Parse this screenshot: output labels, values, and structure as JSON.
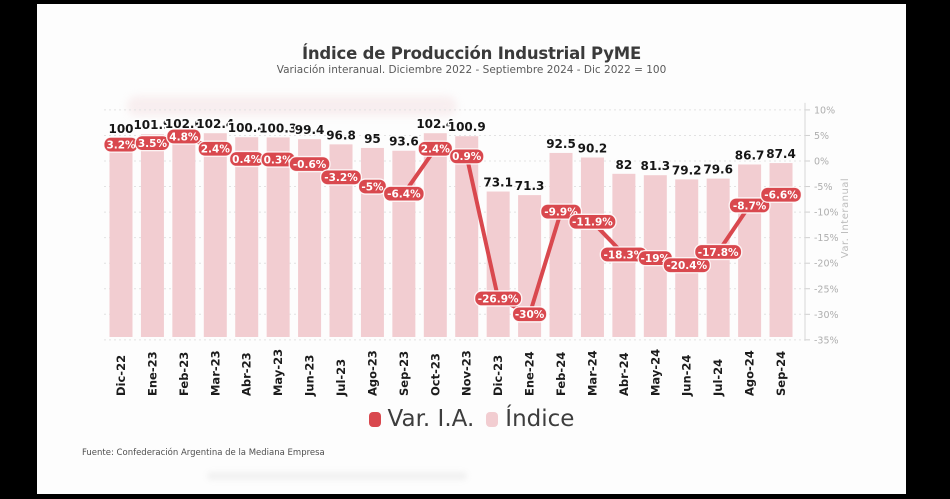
{
  "frame": {
    "background": "#000000",
    "photo_background": "#fdfdfd"
  },
  "chart_data": {
    "type": "bar",
    "subtype": "bar+line-combo",
    "title": "Índice de Producción Industrial PyME",
    "subtitle": "Variación interanual. Diciembre 2022 - Septiembre 2024 - Dic 2022 = 100",
    "categories": [
      "Dic-22",
      "Ene-23",
      "Feb-23",
      "Mar-23",
      "Abr-23",
      "May-23",
      "Jun-23",
      "Jul-23",
      "Ago-23",
      "Sep-23",
      "Oct-23",
      "Nov-23",
      "Dic-23",
      "Ene-24",
      "Feb-24",
      "Mar-24",
      "Abr-24",
      "May-24",
      "Jun-24",
      "Jul-24",
      "Ago-24",
      "Sep-24"
    ],
    "series": [
      {
        "name": "Var. I.A.",
        "type": "line",
        "unit": "%",
        "color": "#d9484e",
        "values": [
          3.2,
          3.5,
          4.8,
          2.4,
          0.4,
          0.3,
          -0.6,
          -3.2,
          -5,
          -6.4,
          2.4,
          0.9,
          -26.9,
          -30,
          -9.9,
          -11.9,
          -18.3,
          -19,
          -20.4,
          -17.8,
          -8.7,
          -6.6
        ],
        "labels": [
          "3.2%",
          "3.5%",
          "4.8%",
          "2.4%",
          "0.4%",
          "0.3%",
          "-0.6%",
          "-3.2%",
          "-5%",
          "-6.4%",
          "2.4%",
          "0.9%",
          "-26.9%",
          "-30%",
          "-9.9%",
          "-11.9%",
          "-18.3%",
          "-19%",
          "-20.4%",
          "-17.8%",
          "-8.7%",
          "-6.6%"
        ],
        "label_style": {
          "pill_background": "#d9484e",
          "pill_text": "#ffffff"
        }
      },
      {
        "name": "Índice",
        "type": "bar",
        "color": "#f2cdd1",
        "values": [
          100,
          101.9,
          102.6,
          102.4,
          100.4,
          100.3,
          99.4,
          96.8,
          95,
          93.6,
          102.4,
          100.9,
          73.1,
          71.3,
          92.5,
          90.2,
          82,
          81.3,
          79.2,
          79.6,
          86.7,
          87.4
        ],
        "labels": [
          "100",
          "101.9",
          "102.6",
          "102.4",
          "100.4",
          "100.3",
          "99.4",
          "96.8",
          "95",
          "93.6",
          "102.4",
          "100.9",
          "73.1",
          "71.3",
          "92.5",
          "90.2",
          "82",
          "81.3",
          "79.2",
          "79.6",
          "86.7",
          "87.4"
        ],
        "label_color": "#161616"
      }
    ],
    "yaxis_right": {
      "title": "Var. Interanual",
      "ticks": [
        "10%",
        "5%",
        "0%",
        "-5%",
        "-10%",
        "-15%",
        "-20%",
        "-25%",
        "-30%",
        "-35%"
      ],
      "tick_values": [
        10,
        5,
        0,
        -5,
        -10,
        -15,
        -20,
        -25,
        -30,
        -35
      ],
      "range": [
        -35,
        10
      ],
      "grid": true,
      "tick_color": "#aeaeae"
    },
    "xaxis": {
      "tick_rotation": -90,
      "tick_color": "#1c1c1c"
    },
    "legend_position": "bottom"
  },
  "source": {
    "text": "Fuente: Confederación Argentina de la Mediana Empresa"
  }
}
